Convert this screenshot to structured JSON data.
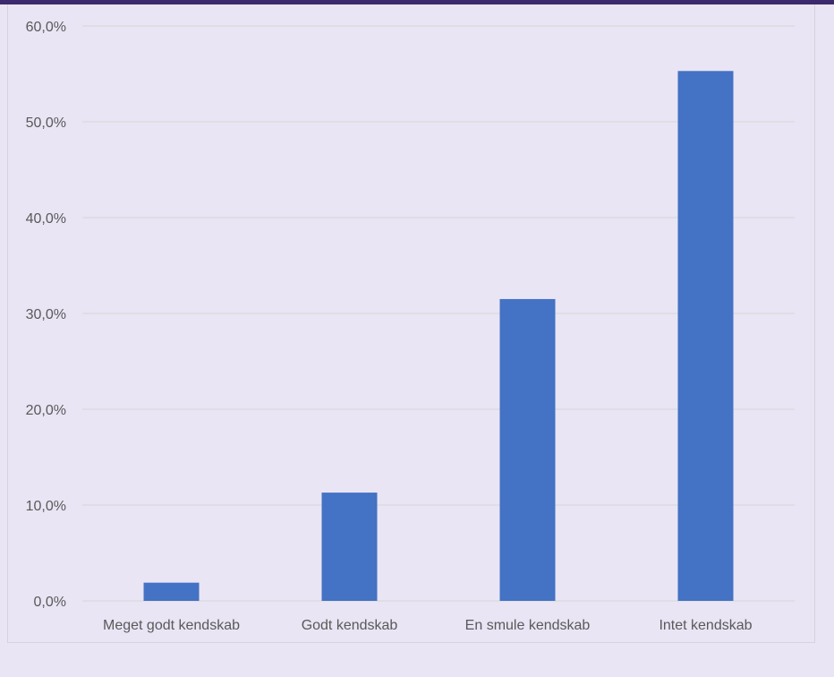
{
  "chart_data": {
    "type": "bar",
    "categories": [
      "Meget godt kendskab",
      "Godt kendskab",
      "En smule kendskab",
      "Intet kendskab"
    ],
    "values": [
      1.9,
      11.3,
      31.5,
      55.3
    ],
    "y_ticks": [
      "0,0%",
      "10,0%",
      "20,0%",
      "30,0%",
      "40,0%",
      "50,0%",
      "60,0%"
    ],
    "ylim": [
      0,
      60
    ],
    "grid": true,
    "bar_color": "#4472c4",
    "gridline_color": "#d9d9d9"
  }
}
